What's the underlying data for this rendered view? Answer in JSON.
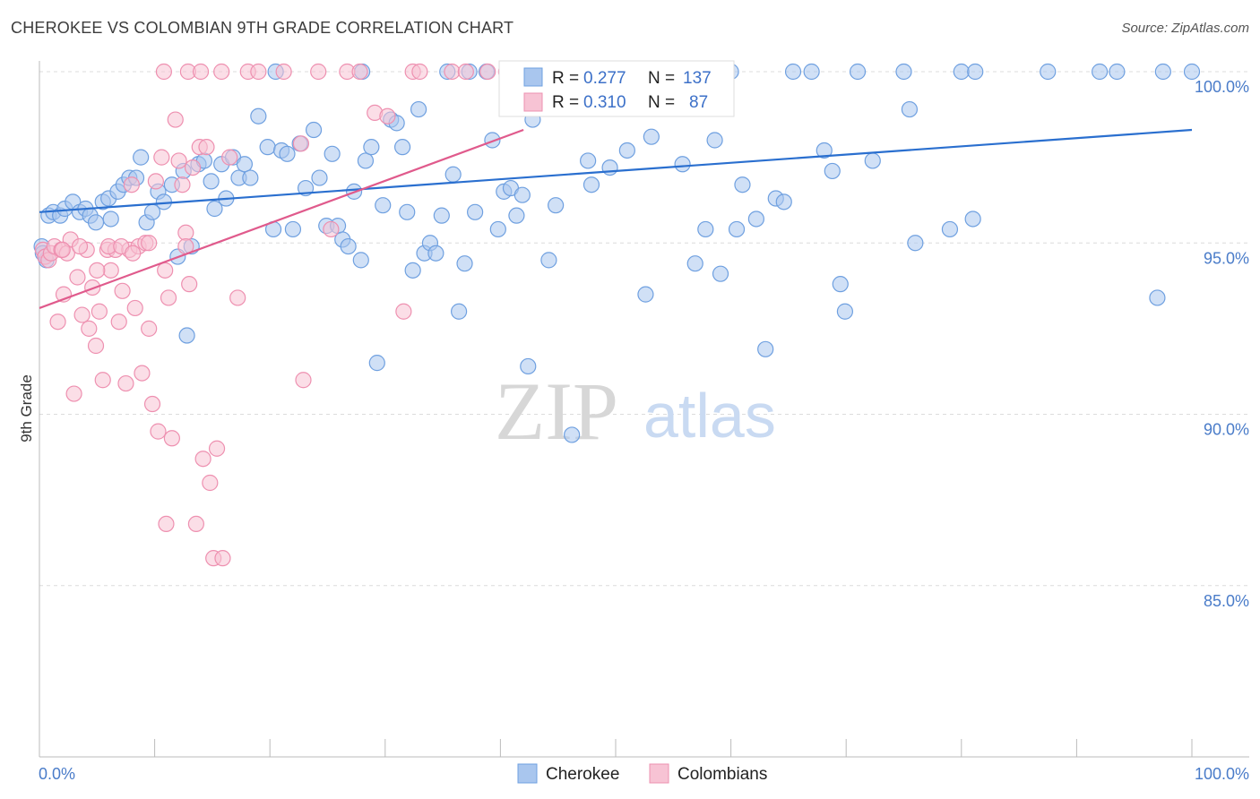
{
  "title": "CHEROKEE VS COLOMBIAN 9TH GRADE CORRELATION CHART",
  "source": "Source: ZipAtlas.com",
  "watermark": {
    "part1": "ZIP",
    "part2": "atlas"
  },
  "legend": {
    "series1": {
      "r_label": "R =",
      "r_value": "0.277",
      "n_label": "N =",
      "n_value": "137"
    },
    "series2": {
      "r_label": "R =",
      "r_value": "0.310",
      "n_label": "N =",
      "n_value": "87"
    }
  },
  "chart_data": {
    "type": "scatter",
    "title": "CHEROKEE VS COLOMBIAN 9TH GRADE CORRELATION CHART",
    "xlabel": "",
    "ylabel": "9th Grade",
    "xlim": [
      0,
      100
    ],
    "ylim": [
      80.5,
      100.5
    ],
    "x_tick_labels": [
      "0.0%",
      "100.0%"
    ],
    "y_ticks": [
      {
        "value": 100,
        "label": "100.0%"
      },
      {
        "value": 95,
        "label": "95.0%"
      },
      {
        "value": 90,
        "label": "90.0%"
      },
      {
        "value": 85,
        "label": "85.0%"
      }
    ],
    "grid": "horizontal dashed",
    "legend_position": "top-center",
    "series": [
      {
        "name": "Cherokee",
        "color": "#6fa0e0",
        "fill": "#a9c6ee",
        "trend_color": "#2a6fcf",
        "trend": {
          "x0": 0,
          "y0": 95.9,
          "x1": 100,
          "y1": 98.3
        },
        "points": [
          [
            0.2,
            94.9
          ],
          [
            0.3,
            94.7
          ],
          [
            0.5,
            94.6
          ],
          [
            0.6,
            94.5
          ],
          [
            0.8,
            95.8
          ],
          [
            1.2,
            95.9
          ],
          [
            1.8,
            95.8
          ],
          [
            2.2,
            96.0
          ],
          [
            2.9,
            96.2
          ],
          [
            3.5,
            95.9
          ],
          [
            4.0,
            96.0
          ],
          [
            4.4,
            95.8
          ],
          [
            4.9,
            95.6
          ],
          [
            5.5,
            96.2
          ],
          [
            6.0,
            96.3
          ],
          [
            6.2,
            95.7
          ],
          [
            6.8,
            96.5
          ],
          [
            7.3,
            96.7
          ],
          [
            7.8,
            96.9
          ],
          [
            8.4,
            96.9
          ],
          [
            8.8,
            97.5
          ],
          [
            9.3,
            95.6
          ],
          [
            9.8,
            95.9
          ],
          [
            10.3,
            96.5
          ],
          [
            10.8,
            96.2
          ],
          [
            11.5,
            96.7
          ],
          [
            12.0,
            94.6
          ],
          [
            12.5,
            97.1
          ],
          [
            12.8,
            92.3
          ],
          [
            13.2,
            94.9
          ],
          [
            13.8,
            97.3
          ],
          [
            14.3,
            97.4
          ],
          [
            14.9,
            96.8
          ],
          [
            15.2,
            96.0
          ],
          [
            15.8,
            97.3
          ],
          [
            16.2,
            96.3
          ],
          [
            16.8,
            97.5
          ],
          [
            17.3,
            96.9
          ],
          [
            17.8,
            97.3
          ],
          [
            18.3,
            96.9
          ],
          [
            19.0,
            98.7
          ],
          [
            19.8,
            97.8
          ],
          [
            20.3,
            95.4
          ],
          [
            21.0,
            97.7
          ],
          [
            21.5,
            97.6
          ],
          [
            22.0,
            95.4
          ],
          [
            22.6,
            97.9
          ],
          [
            23.1,
            96.6
          ],
          [
            23.8,
            98.3
          ],
          [
            24.3,
            96.9
          ],
          [
            24.9,
            95.5
          ],
          [
            25.4,
            97.6
          ],
          [
            25.9,
            95.5
          ],
          [
            26.3,
            95.1
          ],
          [
            26.8,
            94.9
          ],
          [
            27.3,
            96.5
          ],
          [
            27.9,
            94.5
          ],
          [
            28.3,
            97.4
          ],
          [
            28.8,
            97.8
          ],
          [
            29.3,
            91.5
          ],
          [
            29.8,
            96.1
          ],
          [
            30.5,
            98.6
          ],
          [
            31.0,
            98.5
          ],
          [
            31.5,
            97.8
          ],
          [
            31.9,
            95.9
          ],
          [
            32.4,
            94.2
          ],
          [
            32.9,
            98.9
          ],
          [
            33.4,
            94.7
          ],
          [
            33.9,
            95.0
          ],
          [
            34.4,
            94.7
          ],
          [
            34.9,
            95.8
          ],
          [
            35.4,
            100.0
          ],
          [
            35.9,
            97.0
          ],
          [
            36.4,
            93.0
          ],
          [
            36.9,
            94.4
          ],
          [
            37.3,
            100.0
          ],
          [
            37.8,
            95.9
          ],
          [
            38.8,
            100.0
          ],
          [
            39.3,
            98.0
          ],
          [
            39.8,
            95.4
          ],
          [
            40.3,
            96.5
          ],
          [
            40.9,
            96.6
          ],
          [
            41.4,
            95.8
          ],
          [
            41.9,
            96.4
          ],
          [
            42.4,
            91.4
          ],
          [
            42.8,
            98.6
          ],
          [
            43.3,
            100.0
          ],
          [
            44.2,
            94.5
          ],
          [
            44.8,
            96.1
          ],
          [
            45.2,
            100.0
          ],
          [
            46.2,
            89.4
          ],
          [
            46.8,
            100.0
          ],
          [
            47.6,
            97.4
          ],
          [
            47.9,
            96.7
          ],
          [
            49.5,
            97.2
          ],
          [
            50.0,
            100.0
          ],
          [
            51.0,
            97.7
          ],
          [
            52.0,
            100.0
          ],
          [
            52.6,
            93.5
          ],
          [
            53.1,
            98.1
          ],
          [
            55.0,
            100.0
          ],
          [
            55.8,
            97.3
          ],
          [
            56.9,
            94.4
          ],
          [
            57.8,
            95.4
          ],
          [
            58.6,
            98.0
          ],
          [
            59.1,
            94.1
          ],
          [
            60.0,
            100.0
          ],
          [
            60.5,
            95.4
          ],
          [
            61.0,
            96.7
          ],
          [
            62.2,
            95.7
          ],
          [
            63.0,
            91.9
          ],
          [
            63.9,
            96.3
          ],
          [
            64.6,
            96.2
          ],
          [
            65.4,
            100.0
          ],
          [
            67.0,
            100.0
          ],
          [
            68.1,
            97.7
          ],
          [
            68.8,
            97.1
          ],
          [
            69.5,
            93.8
          ],
          [
            69.9,
            93.0
          ],
          [
            71.0,
            100.0
          ],
          [
            72.3,
            97.4
          ],
          [
            75.0,
            100.0
          ],
          [
            75.5,
            98.9
          ],
          [
            76.0,
            95.0
          ],
          [
            79.0,
            95.4
          ],
          [
            80.0,
            100.0
          ],
          [
            81.0,
            95.7
          ],
          [
            81.2,
            100.0
          ],
          [
            87.5,
            100.0
          ],
          [
            92.0,
            100.0
          ],
          [
            93.5,
            100.0
          ],
          [
            97.5,
            100.0
          ],
          [
            97.0,
            93.4
          ],
          [
            100.0,
            100.0
          ],
          [
            28.0,
            100.0
          ],
          [
            20.5,
            100.0
          ],
          [
            57.0,
            100.0
          ]
        ]
      },
      {
        "name": "Colombians",
        "color": "#ee90b0",
        "fill": "#f7c3d4",
        "trend_color": "#e05a8c",
        "trend": {
          "x0": 0,
          "y0": 93.1,
          "x1": 42,
          "y1": 98.3
        },
        "points": [
          [
            0.3,
            94.8
          ],
          [
            0.5,
            94.6
          ],
          [
            0.8,
            94.5
          ],
          [
            1.0,
            94.7
          ],
          [
            1.3,
            94.9
          ],
          [
            1.6,
            92.7
          ],
          [
            1.9,
            94.8
          ],
          [
            2.1,
            93.5
          ],
          [
            2.4,
            94.7
          ],
          [
            2.7,
            95.1
          ],
          [
            3.0,
            90.6
          ],
          [
            3.3,
            94.0
          ],
          [
            3.7,
            92.9
          ],
          [
            4.1,
            94.8
          ],
          [
            4.3,
            92.5
          ],
          [
            4.6,
            93.7
          ],
          [
            4.9,
            92.0
          ],
          [
            5.2,
            93.0
          ],
          [
            5.5,
            91.0
          ],
          [
            5.9,
            94.8
          ],
          [
            6.2,
            94.2
          ],
          [
            6.6,
            94.8
          ],
          [
            6.9,
            92.7
          ],
          [
            7.2,
            93.6
          ],
          [
            7.5,
            90.9
          ],
          [
            7.8,
            94.8
          ],
          [
            8.0,
            96.7
          ],
          [
            8.3,
            93.1
          ],
          [
            8.6,
            94.9
          ],
          [
            8.9,
            91.2
          ],
          [
            9.2,
            95.0
          ],
          [
            9.5,
            92.5
          ],
          [
            9.8,
            90.3
          ],
          [
            10.1,
            96.8
          ],
          [
            10.3,
            89.5
          ],
          [
            10.6,
            97.5
          ],
          [
            10.9,
            94.2
          ],
          [
            11.2,
            93.4
          ],
          [
            11.5,
            89.3
          ],
          [
            11.8,
            98.6
          ],
          [
            12.1,
            97.4
          ],
          [
            12.4,
            96.7
          ],
          [
            12.7,
            95.3
          ],
          [
            13.0,
            93.8
          ],
          [
            13.3,
            97.2
          ],
          [
            13.6,
            86.8
          ],
          [
            13.9,
            97.8
          ],
          [
            14.2,
            88.7
          ],
          [
            14.5,
            97.8
          ],
          [
            14.8,
            88.0
          ],
          [
            15.1,
            85.8
          ],
          [
            15.4,
            89.0
          ],
          [
            15.9,
            85.8
          ],
          [
            16.5,
            97.5
          ],
          [
            17.2,
            93.4
          ],
          [
            18.1,
            100.0
          ],
          [
            19.0,
            100.0
          ],
          [
            21.2,
            100.0
          ],
          [
            22.7,
            97.9
          ],
          [
            22.9,
            91.0
          ],
          [
            24.2,
            100.0
          ],
          [
            25.3,
            95.4
          ],
          [
            26.7,
            100.0
          ],
          [
            27.8,
            100.0
          ],
          [
            29.1,
            98.8
          ],
          [
            30.2,
            98.7
          ],
          [
            31.6,
            93.0
          ],
          [
            32.4,
            100.0
          ],
          [
            33.0,
            100.0
          ],
          [
            35.8,
            100.0
          ],
          [
            37.0,
            100.0
          ],
          [
            38.9,
            100.0
          ],
          [
            40.5,
            100.0
          ],
          [
            41.6,
            100.0
          ],
          [
            10.8,
            100.0
          ],
          [
            12.9,
            100.0
          ],
          [
            14.0,
            100.0
          ],
          [
            15.8,
            100.0
          ],
          [
            9.5,
            95.0
          ],
          [
            6.0,
            94.9
          ],
          [
            3.5,
            94.9
          ],
          [
            12.7,
            94.9
          ],
          [
            7.1,
            94.9
          ],
          [
            2.0,
            94.8
          ],
          [
            8.1,
            94.7
          ],
          [
            11.0,
            86.8
          ],
          [
            5.0,
            94.2
          ]
        ]
      }
    ]
  }
}
